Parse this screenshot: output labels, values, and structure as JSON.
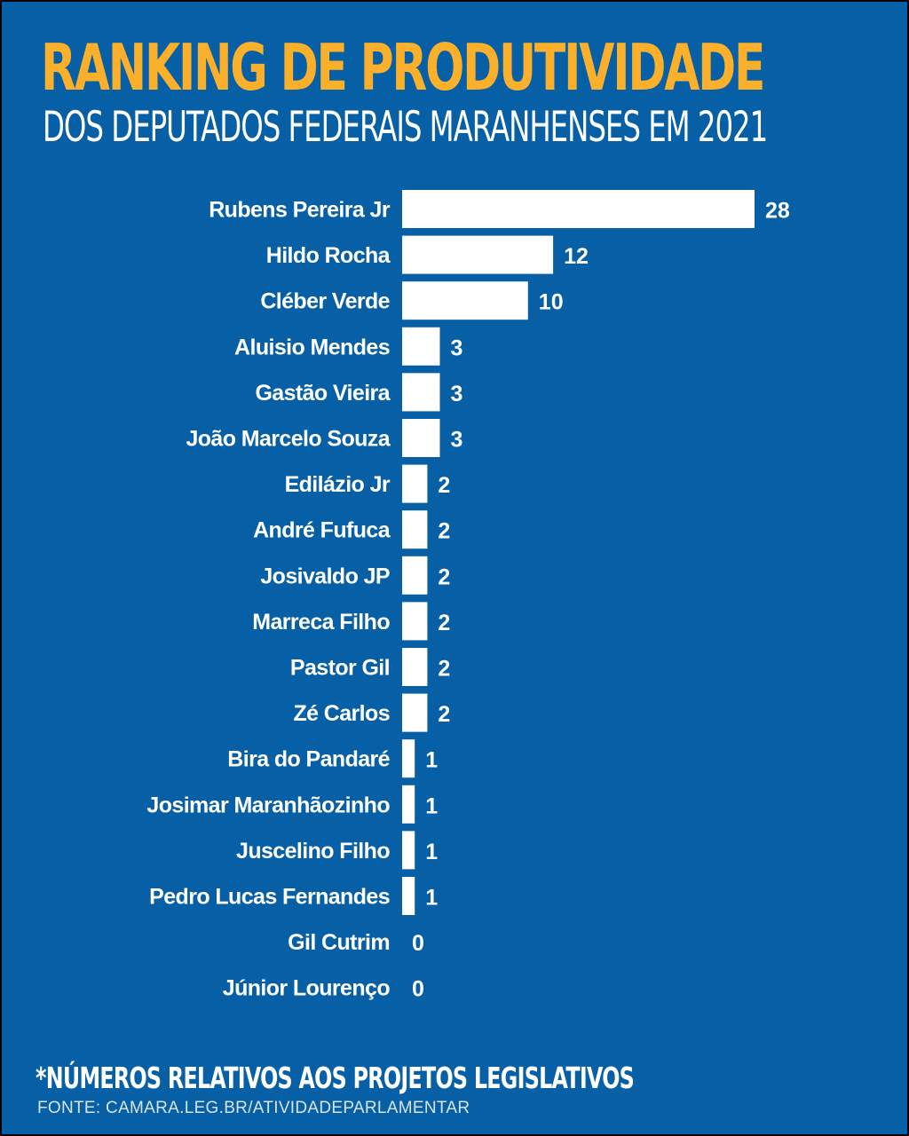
{
  "header": {
    "title": "RANKING DE PRODUTIVIDADE",
    "subtitle": "DOS DEPUTADOS FEDERAIS MARANHENSES EM 2021"
  },
  "footer": {
    "footnote": "*NÚMEROS RELATIVOS AOS PROJETOS LEGISLATIVOS",
    "source": "FONTE: CAMARA.LEG.BR/ATIVIDADEPARLAMENTAR"
  },
  "colors": {
    "background": "#0760a5",
    "title": "#fbb02b",
    "bars": "#ffffff",
    "text": "#ffffff"
  },
  "chart_data": {
    "type": "bar",
    "orientation": "horizontal",
    "categories": [
      "Rubens Pereira Jr",
      "Hildo Rocha",
      "Cléber Verde",
      "Aluisio Mendes",
      "Gastão Vieira",
      "João Marcelo Souza",
      "Edilázio Jr",
      "André Fufuca",
      "Josivaldo JP",
      "Marreca Filho",
      "Pastor Gil",
      "Zé Carlos",
      "Bira do Pandaré",
      "Josimar Maranhãozinho",
      "Juscelino Filho",
      "Pedro Lucas Fernandes",
      "Gil Cutrim",
      "Júnior Lourenço"
    ],
    "values": [
      28,
      12,
      10,
      3,
      3,
      3,
      2,
      2,
      2,
      2,
      2,
      2,
      1,
      1,
      1,
      1,
      0,
      0
    ],
    "value_labels": [
      "28",
      "12",
      "10",
      "3",
      "3",
      "3",
      "2",
      "2",
      "2",
      "2",
      "2",
      "2",
      "1",
      "1",
      "1",
      "1",
      "0",
      "0"
    ],
    "xlim": [
      0,
      28
    ],
    "grid": false,
    "legend": "none",
    "data_labels": true
  }
}
